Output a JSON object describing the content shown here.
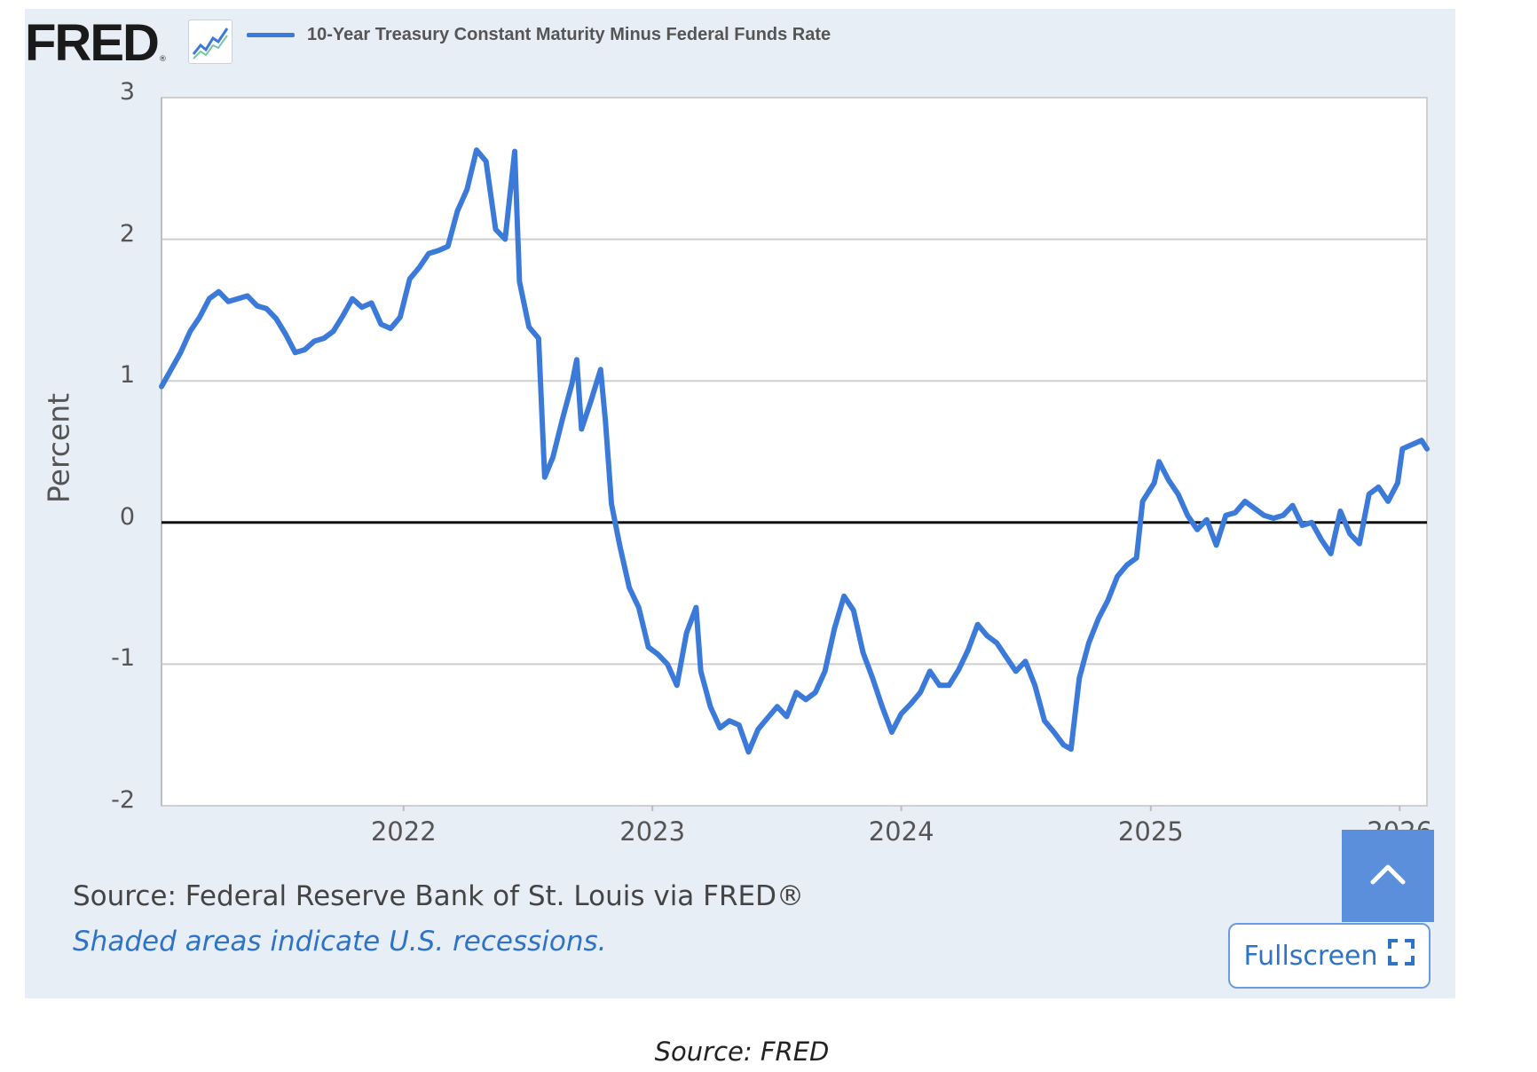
{
  "header": {
    "logo_text": "FRED",
    "logo_reg": "®",
    "logo_icon": "chart-line-icon"
  },
  "chart_data": {
    "type": "line",
    "title": "",
    "xlabel": "",
    "ylabel": "Percent",
    "ylim": [
      -2,
      3
    ],
    "xlim": [
      "2021-01-11",
      "2026-02-10"
    ],
    "yticks": [
      "3",
      "2",
      "1",
      "0",
      "-1",
      "-2"
    ],
    "xticks": [
      "2022",
      "2023",
      "2024",
      "2025",
      "2026"
    ],
    "grid": true,
    "legend_position": "top",
    "zero_line": true,
    "series": [
      {
        "name": "10-Year Treasury Constant Maturity Minus Federal Funds Rate",
        "color": "#3b7ad9",
        "points": [
          [
            "2021-01-11",
            0.96
          ],
          [
            "2021-01-25",
            1.08
          ],
          [
            "2021-02-08",
            1.2
          ],
          [
            "2021-02-22",
            1.35
          ],
          [
            "2021-03-08",
            1.45
          ],
          [
            "2021-03-22",
            1.58
          ],
          [
            "2021-04-05",
            1.63
          ],
          [
            "2021-04-19",
            1.56
          ],
          [
            "2021-05-03",
            1.58
          ],
          [
            "2021-05-17",
            1.6
          ],
          [
            "2021-05-31",
            1.53
          ],
          [
            "2021-06-14",
            1.51
          ],
          [
            "2021-06-28",
            1.44
          ],
          [
            "2021-07-12",
            1.33
          ],
          [
            "2021-07-26",
            1.2
          ],
          [
            "2021-08-09",
            1.22
          ],
          [
            "2021-08-23",
            1.28
          ],
          [
            "2021-09-06",
            1.3
          ],
          [
            "2021-09-20",
            1.35
          ],
          [
            "2021-10-04",
            1.46
          ],
          [
            "2021-10-18",
            1.58
          ],
          [
            "2021-11-01",
            1.52
          ],
          [
            "2021-11-15",
            1.55
          ],
          [
            "2021-11-29",
            1.4
          ],
          [
            "2021-12-13",
            1.37
          ],
          [
            "2021-12-27",
            1.45
          ],
          [
            "2022-01-10",
            1.72
          ],
          [
            "2022-01-24",
            1.8
          ],
          [
            "2022-02-07",
            1.9
          ],
          [
            "2022-02-21",
            1.92
          ],
          [
            "2022-03-07",
            1.95
          ],
          [
            "2022-03-21",
            2.2
          ],
          [
            "2022-04-04",
            2.35
          ],
          [
            "2022-04-18",
            2.63
          ],
          [
            "2022-05-02",
            2.55
          ],
          [
            "2022-05-16",
            2.07
          ],
          [
            "2022-05-30",
            2.0
          ],
          [
            "2022-06-13",
            2.62
          ],
          [
            "2022-06-20",
            1.7
          ],
          [
            "2022-07-04",
            1.38
          ],
          [
            "2022-07-18",
            1.3
          ],
          [
            "2022-07-27",
            0.32
          ],
          [
            "2022-08-08",
            0.46
          ],
          [
            "2022-08-22",
            0.73
          ],
          [
            "2022-09-05",
            0.98
          ],
          [
            "2022-09-12",
            1.15
          ],
          [
            "2022-09-19",
            0.66
          ],
          [
            "2022-10-03",
            0.86
          ],
          [
            "2022-10-17",
            1.08
          ],
          [
            "2022-10-24",
            0.72
          ],
          [
            "2022-11-02",
            0.13
          ],
          [
            "2022-11-14",
            -0.16
          ],
          [
            "2022-11-28",
            -0.46
          ],
          [
            "2022-12-12",
            -0.6
          ],
          [
            "2022-12-26",
            -0.88
          ],
          [
            "2023-01-09",
            -0.93
          ],
          [
            "2023-01-23",
            -1.0
          ],
          [
            "2023-02-06",
            -1.15
          ],
          [
            "2023-02-20",
            -0.78
          ],
          [
            "2023-03-06",
            -0.6
          ],
          [
            "2023-03-13",
            -1.05
          ],
          [
            "2023-03-27",
            -1.3
          ],
          [
            "2023-04-10",
            -1.45
          ],
          [
            "2023-04-24",
            -1.4
          ],
          [
            "2023-05-08",
            -1.43
          ],
          [
            "2023-05-22",
            -1.62
          ],
          [
            "2023-06-05",
            -1.46
          ],
          [
            "2023-06-19",
            -1.38
          ],
          [
            "2023-07-03",
            -1.3
          ],
          [
            "2023-07-17",
            -1.37
          ],
          [
            "2023-07-31",
            -1.2
          ],
          [
            "2023-08-14",
            -1.25
          ],
          [
            "2023-08-28",
            -1.2
          ],
          [
            "2023-09-11",
            -1.05
          ],
          [
            "2023-09-25",
            -0.75
          ],
          [
            "2023-10-09",
            -0.52
          ],
          [
            "2023-10-23",
            -0.62
          ],
          [
            "2023-11-06",
            -0.92
          ],
          [
            "2023-11-20",
            -1.1
          ],
          [
            "2023-12-04",
            -1.3
          ],
          [
            "2023-12-18",
            -1.48
          ],
          [
            "2024-01-01",
            -1.35
          ],
          [
            "2024-01-15",
            -1.28
          ],
          [
            "2024-01-29",
            -1.2
          ],
          [
            "2024-02-12",
            -1.05
          ],
          [
            "2024-02-26",
            -1.15
          ],
          [
            "2024-03-11",
            -1.15
          ],
          [
            "2024-03-25",
            -1.04
          ],
          [
            "2024-04-08",
            -0.9
          ],
          [
            "2024-04-22",
            -0.72
          ],
          [
            "2024-05-06",
            -0.8
          ],
          [
            "2024-05-20",
            -0.85
          ],
          [
            "2024-06-03",
            -0.95
          ],
          [
            "2024-06-17",
            -1.05
          ],
          [
            "2024-07-01",
            -0.98
          ],
          [
            "2024-07-15",
            -1.15
          ],
          [
            "2024-07-29",
            -1.4
          ],
          [
            "2024-08-12",
            -1.48
          ],
          [
            "2024-08-26",
            -1.57
          ],
          [
            "2024-09-06",
            -1.6
          ],
          [
            "2024-09-18",
            -1.1
          ],
          [
            "2024-10-02",
            -0.85
          ],
          [
            "2024-10-16",
            -0.68
          ],
          [
            "2024-10-30",
            -0.55
          ],
          [
            "2024-11-13",
            -0.38
          ],
          [
            "2024-11-27",
            -0.3
          ],
          [
            "2024-12-11",
            -0.25
          ],
          [
            "2024-12-20",
            0.15
          ],
          [
            "2025-01-06",
            0.28
          ],
          [
            "2025-01-13",
            0.43
          ],
          [
            "2025-01-27",
            0.3
          ],
          [
            "2025-02-10",
            0.2
          ],
          [
            "2025-02-24",
            0.05
          ],
          [
            "2025-03-10",
            -0.05
          ],
          [
            "2025-03-24",
            0.02
          ],
          [
            "2025-04-07",
            -0.16
          ],
          [
            "2025-04-21",
            0.05
          ],
          [
            "2025-05-05",
            0.07
          ],
          [
            "2025-05-19",
            0.15
          ],
          [
            "2025-06-02",
            0.1
          ],
          [
            "2025-06-16",
            0.05
          ],
          [
            "2025-06-30",
            0.03
          ],
          [
            "2025-07-14",
            0.05
          ],
          [
            "2025-07-28",
            0.12
          ],
          [
            "2025-08-11",
            -0.02
          ],
          [
            "2025-08-25",
            0.0
          ],
          [
            "2025-09-08",
            -0.12
          ],
          [
            "2025-09-22",
            -0.22
          ],
          [
            "2025-10-06",
            0.08
          ],
          [
            "2025-10-20",
            -0.08
          ],
          [
            "2025-11-03",
            -0.15
          ],
          [
            "2025-11-17",
            0.2
          ],
          [
            "2025-12-01",
            0.25
          ],
          [
            "2025-12-15",
            0.15
          ],
          [
            "2025-12-29",
            0.28
          ],
          [
            "2026-01-05",
            0.52
          ],
          [
            "2026-01-19",
            0.55
          ],
          [
            "2026-02-02",
            0.58
          ],
          [
            "2026-02-10",
            0.52
          ]
        ]
      }
    ]
  },
  "footer": {
    "source": "Source: Federal Reserve Bank of St. Louis via FRED®",
    "shaded_note": "Shaded areas indicate U.S. recessions.",
    "fullscreen_label": "Fullscreen",
    "scroll_top_icon": "chevron-up-icon",
    "fullscreen_icon": "expand-icon"
  },
  "caption": "Source: FRED"
}
